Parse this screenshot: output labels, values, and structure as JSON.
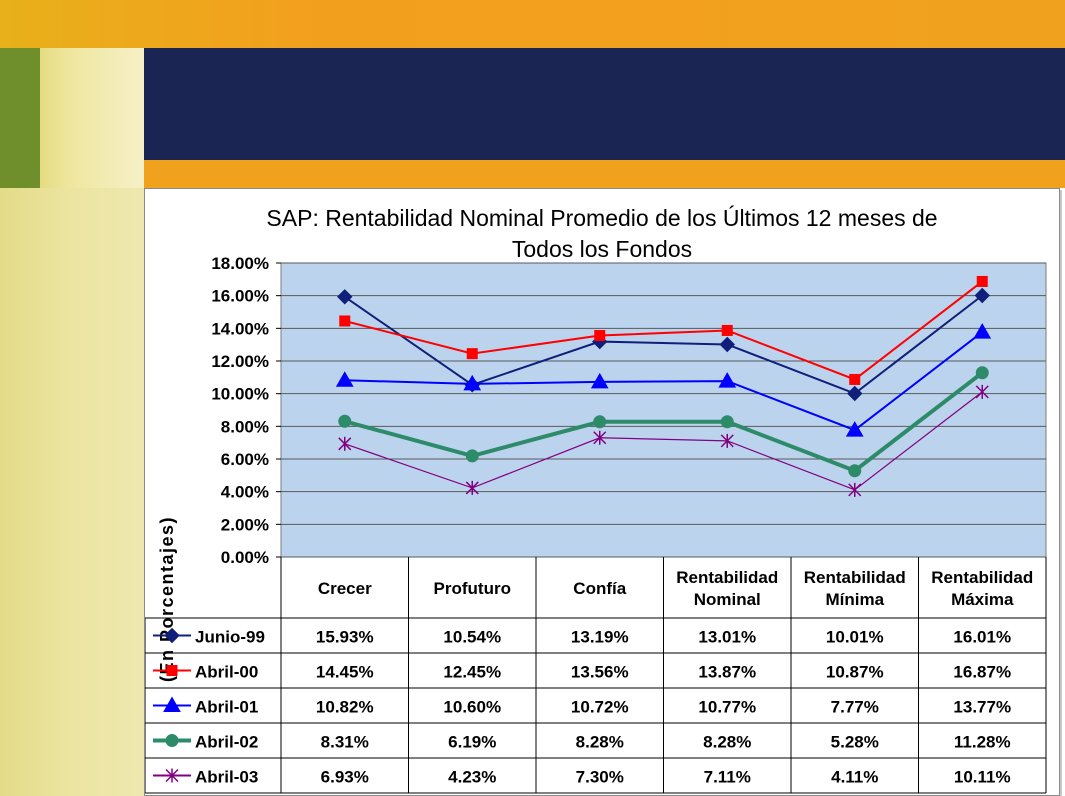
{
  "chart_data": {
    "type": "line",
    "title": "SAP: Rentabilidad Nominal Promedio de los Últimos 12 meses de Todos los Fondos",
    "title_lines": [
      "SAP: Rentabilidad Nominal Promedio de los Últimos 12 meses de",
      "Todos los Fondos"
    ],
    "xlabel": "",
    "ylabel": "(En Porcentajes)",
    "ylim": [
      0,
      18
    ],
    "y_tick_step": 2,
    "y_tick_labels": [
      "0.00%",
      "2.00%",
      "4.00%",
      "6.00%",
      "8.00%",
      "10.00%",
      "12.00%",
      "14.00%",
      "16.00%",
      "18.00%"
    ],
    "grid": true,
    "legend": "data-table",
    "categories": [
      [
        "Crecer"
      ],
      [
        "Profuturo"
      ],
      [
        "Confía"
      ],
      [
        "Rentabilidad",
        "Nominal"
      ],
      [
        "Rentabilidad",
        "Mínima"
      ],
      [
        "Rentabilidad",
        "Máxima"
      ]
    ],
    "series": [
      {
        "name": "Junio-99",
        "color": "#0f1f7a",
        "marker": "diamond",
        "values": [
          15.93,
          10.54,
          13.19,
          13.01,
          10.01,
          16.01
        ],
        "labels": [
          "15.93%",
          "10.54%",
          "13.19%",
          "13.01%",
          "10.01%",
          "16.01%"
        ]
      },
      {
        "name": "Abril-00",
        "color": "#ff0000",
        "marker": "square",
        "values": [
          14.45,
          12.45,
          13.56,
          13.87,
          10.87,
          16.87
        ],
        "labels": [
          "14.45%",
          "12.45%",
          "13.56%",
          "13.87%",
          "10.87%",
          "16.87%"
        ]
      },
      {
        "name": "Abril-01",
        "color": "#0000ff",
        "marker": "triangle",
        "values": [
          10.82,
          10.6,
          10.72,
          10.77,
          7.77,
          13.77
        ],
        "labels": [
          "10.82%",
          "10.60%",
          "10.72%",
          "10.77%",
          "7.77%",
          "13.77%"
        ]
      },
      {
        "name": "Abril-02",
        "color": "#2e8b6a",
        "marker": "circle",
        "values": [
          8.31,
          6.19,
          8.28,
          8.28,
          5.28,
          11.28
        ],
        "labels": [
          "8.31%",
          "6.19%",
          "8.28%",
          "8.28%",
          "5.28%",
          "11.28%"
        ]
      },
      {
        "name": "Abril-03",
        "color": "#800080",
        "marker": "star",
        "values": [
          6.93,
          4.23,
          7.3,
          7.11,
          4.11,
          10.11
        ],
        "labels": [
          "6.93%",
          "4.23%",
          "7.30%",
          "7.11%",
          "4.11%",
          "10.11%"
        ]
      }
    ]
  },
  "colors": {
    "plot_bg": "#bcd3ee",
    "slide_top_bar": "#1b2553",
    "slide_stripe": "#f0a21e"
  }
}
